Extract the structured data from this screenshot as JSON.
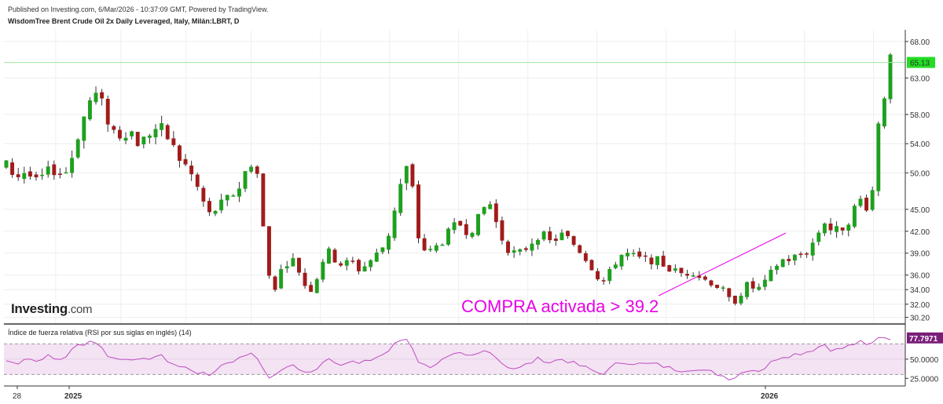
{
  "header": {
    "published": "Published on Investing.com, 6/Mar/2026 - 10:37:09 GMT, Powered by TradingView.",
    "symbol": "WisdomTree Brent Crude Oil 2x Daily Leveraged, Italy, Milán:LBRT, D"
  },
  "logo": {
    "brand": "Investing",
    "suffix": ".com"
  },
  "annotation": {
    "text": "COMPRA activada > 39.2"
  },
  "rsi_panel": {
    "title": "Índice de fuerza relativa (RSI por sus siglas en inglés) (14)"
  },
  "colors": {
    "up": "#1ea01e",
    "down": "#a11b1b",
    "price_line": "#9ee89e",
    "price_badge": "#22dd22",
    "rsi_line": "#c04bc0",
    "rsi_fill": "#f3e3f3",
    "rsi_badge": "#7a1f7a",
    "annotation": "#e800e8"
  },
  "chart_data": {
    "type": "candlestick",
    "price_axis": {
      "ticks": [
        "68.00",
        "65.13",
        "63.00",
        "58.00",
        "54.00",
        "50.00",
        "45.00",
        "42.00",
        "39.00",
        "36.00",
        "34.00",
        "32.00",
        "30.20"
      ],
      "tick_values": [
        68,
        65.13,
        63,
        58,
        54,
        50,
        45,
        42,
        39,
        36,
        34,
        32,
        30.2
      ],
      "current": "65.13"
    },
    "time_axis": {
      "labels": [
        "28",
        "2025",
        "2026"
      ],
      "bold": [
        "2025",
        "2026"
      ]
    },
    "close_path": [
      [
        0,
        51.0
      ],
      [
        10,
        49.5
      ],
      [
        20,
        50.2
      ],
      [
        30,
        48.6
      ],
      [
        40,
        49.8
      ],
      [
        50,
        50.6
      ],
      [
        58,
        49.4
      ],
      [
        65,
        51.5
      ],
      [
        72,
        55.0
      ],
      [
        82,
        59.0
      ],
      [
        88,
        61.0
      ],
      [
        95,
        60.0
      ],
      [
        102,
        57.5
      ],
      [
        112,
        55.0
      ],
      [
        125,
        56.0
      ],
      [
        135,
        53.8
      ],
      [
        145,
        55.5
      ],
      [
        155,
        56.3
      ],
      [
        165,
        54.5
      ],
      [
        175,
        52.0
      ],
      [
        185,
        50.4
      ],
      [
        195,
        47.5
      ],
      [
        205,
        44.2
      ],
      [
        215,
        45.3
      ],
      [
        225,
        46.5
      ],
      [
        235,
        47.8
      ],
      [
        245,
        51.0
      ],
      [
        252,
        52.0
      ],
      [
        258,
        45.5
      ],
      [
        262,
        39.5
      ],
      [
        266,
        36.0
      ],
      [
        270,
        33.5
      ],
      [
        275,
        35.8
      ],
      [
        282,
        37.5
      ],
      [
        288,
        38.4
      ],
      [
        295,
        37.0
      ],
      [
        300,
        35.5
      ],
      [
        305,
        33.8
      ],
      [
        312,
        34.5
      ],
      [
        318,
        37.5
      ],
      [
        325,
        39.2
      ],
      [
        332,
        38.3
      ],
      [
        340,
        37.4
      ],
      [
        350,
        37.8
      ],
      [
        358,
        36.7
      ],
      [
        365,
        37.5
      ],
      [
        375,
        38.8
      ],
      [
        385,
        40.5
      ],
      [
        392,
        44.5
      ],
      [
        398,
        47.8
      ],
      [
        404,
        50.8
      ],
      [
        410,
        49.5
      ],
      [
        415,
        42.0
      ],
      [
        422,
        39.6
      ],
      [
        430,
        39.1
      ],
      [
        440,
        40.5
      ],
      [
        450,
        42.0
      ],
      [
        458,
        43.2
      ],
      [
        465,
        42.2
      ],
      [
        472,
        42.5
      ],
      [
        480,
        44.0
      ],
      [
        488,
        46.5
      ],
      [
        495,
        43.5
      ],
      [
        502,
        41.0
      ],
      [
        510,
        39.3
      ],
      [
        518,
        38.7
      ],
      [
        528,
        40.0
      ],
      [
        538,
        41.5
      ],
      [
        545,
        41.2
      ],
      [
        552,
        40.3
      ],
      [
        560,
        41.6
      ],
      [
        568,
        41.0
      ],
      [
        575,
        40.2
      ],
      [
        582,
        39.2
      ],
      [
        590,
        37.8
      ],
      [
        597,
        36.2
      ],
      [
        603,
        35.0
      ],
      [
        610,
        36.0
      ],
      [
        618,
        38.2
      ],
      [
        625,
        39.0
      ],
      [
        635,
        38.5
      ],
      [
        645,
        38.0
      ],
      [
        655,
        38.2
      ],
      [
        665,
        37.5
      ],
      [
        675,
        36.5
      ],
      [
        685,
        36.2
      ],
      [
        695,
        36.6
      ],
      [
        705,
        35.5
      ],
      [
        715,
        35.0
      ],
      [
        722,
        34.3
      ],
      [
        728,
        33.4
      ],
      [
        733,
        32.3
      ],
      [
        738,
        32.6
      ],
      [
        745,
        33.8
      ],
      [
        752,
        34.8
      ],
      [
        758,
        34.0
      ],
      [
        765,
        34.2
      ],
      [
        772,
        35.6
      ],
      [
        778,
        37.2
      ],
      [
        785,
        38.0
      ],
      [
        792,
        38.2
      ],
      [
        800,
        38.5
      ],
      [
        808,
        39.0
      ],
      [
        815,
        40.0
      ],
      [
        822,
        41.8
      ],
      [
        828,
        43.5
      ],
      [
        835,
        42.2
      ],
      [
        842,
        42.0
      ],
      [
        848,
        42.8
      ],
      [
        855,
        44.0
      ],
      [
        862,
        46.0
      ],
      [
        868,
        46.5
      ],
      [
        872,
        45.2
      ],
      [
        876,
        47.0
      ],
      [
        880,
        49.5
      ],
      [
        883,
        57.5
      ],
      [
        886,
        57.0
      ],
      [
        889,
        61.0
      ],
      [
        892,
        63.0
      ],
      [
        895,
        65.13
      ]
    ],
    "rsi": {
      "axis_ticks": [
        "77.7971",
        "50.0000",
        "25.0000"
      ],
      "axis_values": [
        77.7971,
        50,
        25
      ],
      "bands": [
        70,
        30
      ],
      "current": "77.7971"
    },
    "rsi_path": [
      [
        0,
        48
      ],
      [
        10,
        44
      ],
      [
        20,
        53
      ],
      [
        30,
        47
      ],
      [
        40,
        55
      ],
      [
        50,
        49
      ],
      [
        58,
        51
      ],
      [
        65,
        60
      ],
      [
        72,
        68
      ],
      [
        82,
        72
      ],
      [
        88,
        76
      ],
      [
        95,
        67
      ],
      [
        102,
        56
      ],
      [
        112,
        49
      ],
      [
        125,
        53
      ],
      [
        135,
        46
      ],
      [
        145,
        52
      ],
      [
        155,
        55
      ],
      [
        165,
        47
      ],
      [
        175,
        40
      ],
      [
        185,
        38
      ],
      [
        195,
        32
      ],
      [
        205,
        28
      ],
      [
        215,
        40
      ],
      [
        225,
        47
      ],
      [
        235,
        50
      ],
      [
        245,
        58
      ],
      [
        252,
        60
      ],
      [
        258,
        40
      ],
      [
        262,
        30
      ],
      [
        266,
        27
      ],
      [
        270,
        24
      ],
      [
        275,
        32
      ],
      [
        282,
        40
      ],
      [
        288,
        44
      ],
      [
        295,
        38
      ],
      [
        300,
        33
      ],
      [
        305,
        30
      ],
      [
        312,
        35
      ],
      [
        318,
        45
      ],
      [
        325,
        52
      ],
      [
        332,
        48
      ],
      [
        340,
        44
      ],
      [
        350,
        47
      ],
      [
        358,
        43
      ],
      [
        365,
        47
      ],
      [
        375,
        53
      ],
      [
        385,
        58
      ],
      [
        392,
        68
      ],
      [
        398,
        74
      ],
      [
        404,
        78
      ],
      [
        410,
        70
      ],
      [
        415,
        50
      ],
      [
        422,
        42
      ],
      [
        430,
        41
      ],
      [
        440,
        48
      ],
      [
        450,
        53
      ],
      [
        458,
        57
      ],
      [
        465,
        53
      ],
      [
        472,
        54
      ],
      [
        480,
        58
      ],
      [
        488,
        64
      ],
      [
        495,
        54
      ],
      [
        502,
        45
      ],
      [
        510,
        39
      ],
      [
        518,
        37
      ],
      [
        528,
        44
      ],
      [
        538,
        50
      ],
      [
        545,
        49
      ],
      [
        552,
        45
      ],
      [
        560,
        51
      ],
      [
        568,
        48
      ],
      [
        575,
        44
      ],
      [
        582,
        41
      ],
      [
        590,
        37
      ],
      [
        597,
        33
      ],
      [
        603,
        31
      ],
      [
        610,
        36
      ],
      [
        618,
        44
      ],
      [
        625,
        47
      ],
      [
        635,
        45
      ],
      [
        645,
        43
      ],
      [
        655,
        44
      ],
      [
        665,
        41
      ],
      [
        675,
        37
      ],
      [
        685,
        36
      ],
      [
        695,
        38
      ],
      [
        705,
        34
      ],
      [
        715,
        33
      ],
      [
        722,
        30
      ],
      [
        728,
        27
      ],
      [
        733,
        25
      ],
      [
        738,
        27
      ],
      [
        745,
        33
      ],
      [
        752,
        38
      ],
      [
        758,
        35
      ],
      [
        765,
        36
      ],
      [
        772,
        43
      ],
      [
        778,
        50
      ],
      [
        785,
        54
      ],
      [
        792,
        55
      ],
      [
        800,
        57
      ],
      [
        808,
        59
      ],
      [
        815,
        62
      ],
      [
        822,
        66
      ],
      [
        828,
        70
      ],
      [
        835,
        63
      ],
      [
        842,
        62
      ],
      [
        848,
        65
      ],
      [
        855,
        68
      ],
      [
        862,
        72
      ],
      [
        868,
        72
      ],
      [
        872,
        66
      ],
      [
        876,
        70
      ],
      [
        880,
        74
      ],
      [
        883,
        80
      ],
      [
        886,
        74
      ],
      [
        889,
        79
      ],
      [
        892,
        78
      ],
      [
        895,
        78
      ]
    ]
  }
}
